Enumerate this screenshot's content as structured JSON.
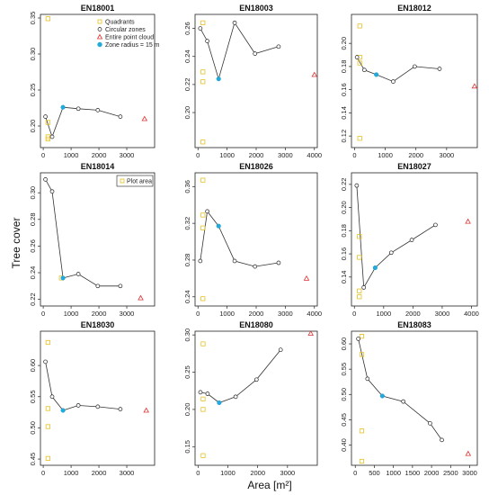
{
  "figure": {
    "ylabel": "Tree cover",
    "xlabel": "Area [m²]"
  },
  "colors": {
    "quadrants": "#e8c020",
    "circular": "#222222",
    "entire": "#dd3333",
    "zone15": "#22aadd",
    "line": "#333333"
  },
  "chart_data": [
    {
      "type": "scatter",
      "title": "EN18001",
      "xlim": [
        -100,
        4000
      ],
      "ylim": [
        0.17,
        0.355
      ],
      "xticks": [
        0,
        1000,
        2000,
        3000
      ],
      "yticks": [
        0.2,
        0.25,
        0.3,
        0.35
      ],
      "legend": {
        "position": "top-right",
        "items": [
          "Quadrants",
          "Circular zones",
          "Entire point cloud",
          "Zone radius = 15 m"
        ]
      },
      "quadrants": {
        "x": [
          170,
          170,
          170,
          170
        ],
        "y": [
          0.349,
          0.205,
          0.185,
          0.182
        ]
      },
      "circular_zones": {
        "x": [
          80,
          320,
          710,
          1260,
          1960,
          2770
        ],
        "y": [
          0.213,
          0.185,
          0.226,
          0.224,
          0.222,
          0.213
        ]
      },
      "zone_radius_15m": {
        "x": [
          710
        ],
        "y": [
          0.226
        ]
      },
      "entire_point_cloud": {
        "x": [
          3640
        ],
        "y": [
          0.21
        ]
      }
    },
    {
      "type": "scatter",
      "title": "EN18003",
      "xlim": [
        -100,
        4100
      ],
      "ylim": [
        0.175,
        0.27
      ],
      "xticks": [
        0,
        1000,
        2000,
        3000,
        4000
      ],
      "yticks": [
        0.2,
        0.22,
        0.24,
        0.26
      ],
      "quadrants": {
        "x": [
          170,
          170,
          170,
          170
        ],
        "y": [
          0.264,
          0.229,
          0.222,
          0.179
        ]
      },
      "circular_zones": {
        "x": [
          80,
          320,
          710,
          1260,
          1960,
          2770
        ],
        "y": [
          0.26,
          0.251,
          0.224,
          0.264,
          0.242,
          0.247
        ]
      },
      "zone_radius_15m": {
        "x": [
          710
        ],
        "y": [
          0.224
        ]
      },
      "entire_point_cloud": {
        "x": [
          4000
        ],
        "y": [
          0.227
        ]
      }
    },
    {
      "type": "scatter",
      "title": "EN18012",
      "xlim": [
        -100,
        4000
      ],
      "ylim": [
        0.11,
        0.225
      ],
      "xticks": [
        0,
        1000,
        2000,
        3000
      ],
      "yticks": [
        0.12,
        0.14,
        0.16,
        0.18,
        0.2
      ],
      "quadrants": {
        "x": [
          170,
          170,
          170,
          170
        ],
        "y": [
          0.215,
          0.188,
          0.183,
          0.118
        ]
      },
      "circular_zones": {
        "x": [
          80,
          320,
          710,
          1260,
          1960,
          2770
        ],
        "y": [
          0.188,
          0.177,
          0.173,
          0.167,
          0.18,
          0.178
        ]
      },
      "zone_radius_15m": {
        "x": [
          710
        ],
        "y": [
          0.173
        ]
      },
      "entire_point_cloud": {
        "x": [
          3910
        ],
        "y": [
          0.163
        ]
      }
    },
    {
      "type": "scatter",
      "title": "EN18014",
      "xlim": [
        -100,
        4000
      ],
      "ylim": [
        0.215,
        0.315
      ],
      "xticks": [
        0,
        1000,
        2000,
        3000
      ],
      "yticks": [
        0.22,
        0.24,
        0.26,
        0.28,
        0.3
      ],
      "legend": {
        "position": "top-right",
        "items": [
          "Plot area"
        ]
      },
      "quadrants": {
        "x": [],
        "y": []
      },
      "plot_area": {
        "x": [
          650
        ],
        "y": [
          0.236
        ]
      },
      "circular_zones": {
        "x": [
          80,
          320,
          710,
          1260,
          1960,
          2770
        ],
        "y": [
          0.31,
          0.301,
          0.236,
          0.239,
          0.23,
          0.23
        ]
      },
      "zone_radius_15m": {
        "x": [
          710
        ],
        "y": [
          0.236
        ]
      },
      "entire_point_cloud": {
        "x": [
          3500
        ],
        "y": [
          0.221
        ]
      }
    },
    {
      "type": "scatter",
      "title": "EN18026",
      "xlim": [
        -100,
        4100
      ],
      "ylim": [
        0.23,
        0.375
      ],
      "xticks": [
        0,
        1000,
        2000,
        3000,
        4000
      ],
      "yticks": [
        0.24,
        0.28,
        0.32,
        0.36
      ],
      "quadrants": {
        "x": [
          170,
          170,
          170,
          170
        ],
        "y": [
          0.367,
          0.329,
          0.315,
          0.238
        ]
      },
      "circular_zones": {
        "x": [
          80,
          320,
          710,
          1260,
          1960,
          2770
        ],
        "y": [
          0.279,
          0.333,
          0.317,
          0.279,
          0.273,
          0.277
        ]
      },
      "zone_radius_15m": {
        "x": [
          710
        ],
        "y": [
          0.317
        ]
      },
      "entire_point_cloud": {
        "x": [
          3730
        ],
        "y": [
          0.26
        ]
      }
    },
    {
      "type": "scatter",
      "title": "EN18027",
      "xlim": [
        -100,
        4200
      ],
      "ylim": [
        0.115,
        0.23
      ],
      "xticks": [
        0,
        1000,
        2000,
        3000,
        4000
      ],
      "yticks": [
        0.14,
        0.16,
        0.18,
        0.2,
        0.22
      ],
      "quadrants": {
        "x": [
          170,
          170,
          170,
          170
        ],
        "y": [
          0.175,
          0.157,
          0.128,
          0.123
        ]
      },
      "circular_zones": {
        "x": [
          80,
          320,
          710,
          1260,
          1960,
          2770
        ],
        "y": [
          0.219,
          0.131,
          0.148,
          0.161,
          0.172,
          0.185
        ]
      },
      "zone_radius_15m": {
        "x": [
          710
        ],
        "y": [
          0.148
        ]
      },
      "entire_point_cloud": {
        "x": [
          3880
        ],
        "y": [
          0.188
        ]
      }
    },
    {
      "type": "scatter",
      "title": "EN18030",
      "xlim": [
        -100,
        4000
      ],
      "ylim": [
        0.44,
        0.655
      ],
      "xticks": [
        0,
        1000,
        2000,
        3000
      ],
      "yticks": [
        0.45,
        0.5,
        0.55,
        0.6
      ],
      "quadrants": {
        "x": [
          170,
          170,
          170,
          170
        ],
        "y": [
          0.637,
          0.531,
          0.502,
          0.451
        ]
      },
      "circular_zones": {
        "x": [
          80,
          320,
          710,
          1260,
          1960,
          2770
        ],
        "y": [
          0.606,
          0.55,
          0.528,
          0.536,
          0.534,
          0.53
        ]
      },
      "zone_radius_15m": {
        "x": [
          710
        ],
        "y": [
          0.528
        ]
      },
      "entire_point_cloud": {
        "x": [
          3700
        ],
        "y": [
          0.528
        ]
      }
    },
    {
      "type": "scatter",
      "title": "EN18080",
      "xlim": [
        -100,
        4000
      ],
      "ylim": [
        0.125,
        0.305
      ],
      "xticks": [
        0,
        1000,
        2000,
        3000
      ],
      "yticks": [
        0.15,
        0.2,
        0.25,
        0.3
      ],
      "quadrants": {
        "x": [
          170,
          170,
          170,
          170
        ],
        "y": [
          0.288,
          0.214,
          0.2,
          0.138
        ]
      },
      "circular_zones": {
        "x": [
          80,
          320,
          710,
          1260,
          1960,
          2770
        ],
        "y": [
          0.223,
          0.221,
          0.209,
          0.217,
          0.24,
          0.28
        ]
      },
      "zone_radius_15m": {
        "x": [
          710
        ],
        "y": [
          0.209
        ]
      },
      "entire_point_cloud": {
        "x": [
          3780
        ],
        "y": [
          0.302
        ]
      }
    },
    {
      "type": "scatter",
      "title": "EN18083",
      "xlim": [
        -100,
        3200
      ],
      "ylim": [
        0.36,
        0.625
      ],
      "xticks": [
        0,
        500,
        1000,
        1500,
        2000,
        2500,
        3000
      ],
      "yticks": [
        0.4,
        0.45,
        0.5,
        0.55,
        0.6
      ],
      "quadrants": {
        "x": [
          170,
          170,
          170,
          170
        ],
        "y": [
          0.615,
          0.579,
          0.428,
          0.368
        ]
      },
      "circular_zones": {
        "x": [
          80,
          320,
          710,
          1260,
          1960,
          2270
        ],
        "y": [
          0.61,
          0.531,
          0.497,
          0.486,
          0.443,
          0.41
        ]
      },
      "zone_radius_15m": {
        "x": [
          710
        ],
        "y": [
          0.497
        ]
      },
      "entire_point_cloud": {
        "x": [
          2960
        ],
        "y": [
          0.383
        ]
      }
    }
  ]
}
